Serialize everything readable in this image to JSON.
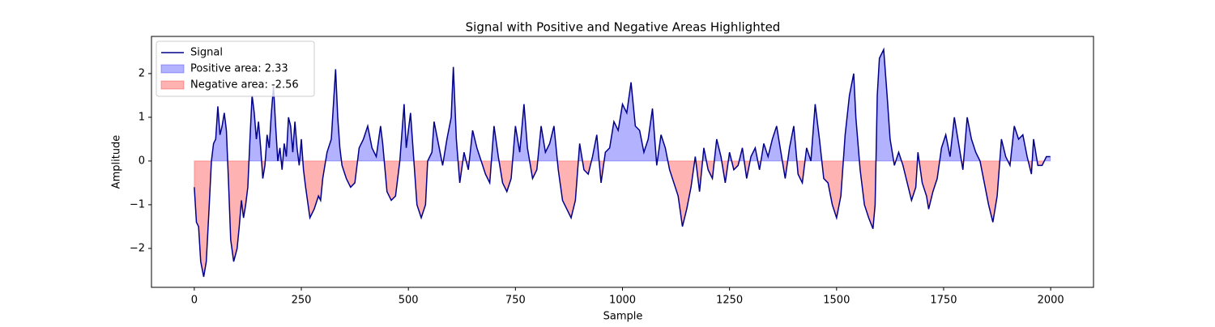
{
  "chart_data": {
    "type": "line",
    "title": "Signal with Positive and Negative Areas Highlighted",
    "xlabel": "Sample",
    "ylabel": "Amplitude",
    "x": [
      0,
      5,
      10,
      15,
      22,
      28,
      35,
      40,
      45,
      50,
      55,
      60,
      65,
      70,
      75,
      80,
      85,
      92,
      100,
      105,
      110,
      115,
      120,
      125,
      130,
      135,
      140,
      145,
      150,
      155,
      160,
      165,
      170,
      175,
      180,
      185,
      190,
      195,
      200,
      205,
      210,
      215,
      220,
      225,
      230,
      235,
      240,
      245,
      250,
      255,
      260,
      270,
      280,
      290,
      295,
      300,
      310,
      320,
      325,
      330,
      335,
      340,
      345,
      355,
      365,
      375,
      385,
      395,
      405,
      415,
      425,
      435,
      440,
      450,
      460,
      470,
      480,
      490,
      495,
      505,
      510,
      520,
      530,
      540,
      545,
      555,
      560,
      570,
      580,
      590,
      600,
      605,
      612,
      620,
      630,
      640,
      650,
      660,
      670,
      680,
      690,
      700,
      710,
      720,
      730,
      740,
      750,
      760,
      770,
      778,
      790,
      800,
      810,
      820,
      830,
      840,
      850,
      860,
      870,
      880,
      890,
      900,
      910,
      920,
      930,
      940,
      950,
      960,
      970,
      980,
      990,
      1000,
      1010,
      1020,
      1030,
      1040,
      1050,
      1060,
      1070,
      1080,
      1090,
      1100,
      1110,
      1120,
      1130,
      1140,
      1150,
      1160,
      1170,
      1180,
      1190,
      1200,
      1210,
      1220,
      1230,
      1240,
      1250,
      1260,
      1270,
      1280,
      1290,
      1300,
      1310,
      1320,
      1330,
      1340,
      1350,
      1360,
      1370,
      1380,
      1390,
      1400,
      1410,
      1420,
      1430,
      1440,
      1450,
      1460,
      1470,
      1480,
      1490,
      1500,
      1510,
      1520,
      1530,
      1540,
      1545,
      1555,
      1565,
      1575,
      1585,
      1590,
      1595,
      1600,
      1610,
      1618,
      1625,
      1635,
      1645,
      1655,
      1665,
      1675,
      1685,
      1690,
      1700,
      1710,
      1715,
      1725,
      1735,
      1745,
      1755,
      1765,
      1775,
      1785,
      1795,
      1805,
      1815,
      1825,
      1835,
      1845,
      1855,
      1865,
      1875,
      1885,
      1895,
      1905,
      1915,
      1925,
      1935,
      1945,
      1955,
      1960,
      1970,
      1980,
      1990,
      1999
    ],
    "series": [
      {
        "name": "Signal",
        "color": "#00008b",
        "values": [
          -0.6,
          -1.4,
          -1.5,
          -2.3,
          -2.65,
          -2.3,
          -1.0,
          0.0,
          0.4,
          0.5,
          1.25,
          0.6,
          0.8,
          1.1,
          0.7,
          -0.5,
          -1.8,
          -2.3,
          -2.0,
          -1.5,
          -0.9,
          -1.3,
          -1.0,
          -0.6,
          0.5,
          1.5,
          1.1,
          0.5,
          0.9,
          0.3,
          -0.4,
          -0.1,
          0.6,
          0.3,
          1.1,
          1.7,
          0.8,
          0.0,
          0.3,
          -0.2,
          0.4,
          0.1,
          1.0,
          0.8,
          0.2,
          0.9,
          0.3,
          -0.1,
          0.5,
          -0.2,
          -0.6,
          -1.3,
          -1.1,
          -0.8,
          -0.9,
          -0.4,
          0.2,
          0.5,
          1.3,
          2.1,
          1.0,
          0.3,
          -0.1,
          -0.4,
          -0.6,
          -0.5,
          0.3,
          0.5,
          0.8,
          0.3,
          0.1,
          0.8,
          0.4,
          -0.7,
          -0.9,
          -0.8,
          0.0,
          1.3,
          0.3,
          1.1,
          0.4,
          -1.0,
          -1.3,
          -1.0,
          0.0,
          0.2,
          0.9,
          0.4,
          -0.1,
          0.5,
          1.0,
          2.15,
          0.5,
          -0.5,
          0.2,
          -0.2,
          0.7,
          0.3,
          0.0,
          -0.3,
          -0.5,
          0.8,
          0.1,
          -0.5,
          -0.7,
          -0.4,
          0.8,
          0.2,
          1.3,
          0.3,
          -0.4,
          -0.2,
          0.8,
          0.2,
          0.4,
          0.8,
          -0.2,
          -0.9,
          -1.1,
          -1.3,
          -0.9,
          0.4,
          -0.2,
          -0.3,
          0.1,
          0.6,
          -0.5,
          0.2,
          0.3,
          0.9,
          0.7,
          1.3,
          1.1,
          1.8,
          0.8,
          0.7,
          0.2,
          0.5,
          1.2,
          -0.1,
          0.6,
          0.3,
          -0.2,
          -0.5,
          -0.8,
          -1.5,
          -1.1,
          -0.6,
          0.1,
          -0.7,
          0.3,
          -0.2,
          -0.4,
          0.5,
          0.1,
          -0.5,
          0.2,
          -0.2,
          -0.1,
          0.3,
          -0.4,
          0.1,
          0.3,
          -0.2,
          0.4,
          0.1,
          0.5,
          0.8,
          0.2,
          -0.4,
          0.3,
          0.8,
          -0.3,
          -0.5,
          0.3,
          0.0,
          1.3,
          0.5,
          -0.4,
          -0.5,
          -1.0,
          -1.3,
          -0.8,
          0.6,
          1.5,
          2.0,
          1.0,
          -0.2,
          -1.0,
          -1.3,
          -1.55,
          -1.0,
          1.5,
          2.35,
          2.55,
          1.5,
          0.5,
          -0.1,
          0.2,
          -0.1,
          -0.5,
          -0.9,
          -0.6,
          0.2,
          -0.5,
          -0.8,
          -1.1,
          -0.7,
          -0.4,
          0.3,
          0.6,
          0.1,
          1.0,
          0.4,
          -0.2,
          1.0,
          0.5,
          0.2,
          0.0,
          -0.5,
          -1.0,
          -1.4,
          -0.8,
          0.5,
          0.1,
          -0.1,
          0.8,
          0.5,
          0.6,
          0.1,
          -0.3,
          0.5,
          -0.1,
          -0.1,
          0.1,
          0.1
        ]
      }
    ],
    "fills": [
      {
        "name": "Positive area: 2.33",
        "color": "#0000ff",
        "where": "positive"
      },
      {
        "name": "Negative area: -2.56",
        "color": "#ff0000",
        "where": "negative"
      }
    ],
    "xlim": [
      -100,
      2100
    ],
    "xticks": [
      0,
      250,
      500,
      750,
      1000,
      1250,
      1500,
      1750,
      2000
    ],
    "ylim": [
      -2.89,
      2.85
    ],
    "yticks": [
      {
        "value": -2,
        "label": "−2"
      },
      {
        "value": -1,
        "label": "−1"
      },
      0,
      1,
      2
    ],
    "legend": "upper left"
  }
}
